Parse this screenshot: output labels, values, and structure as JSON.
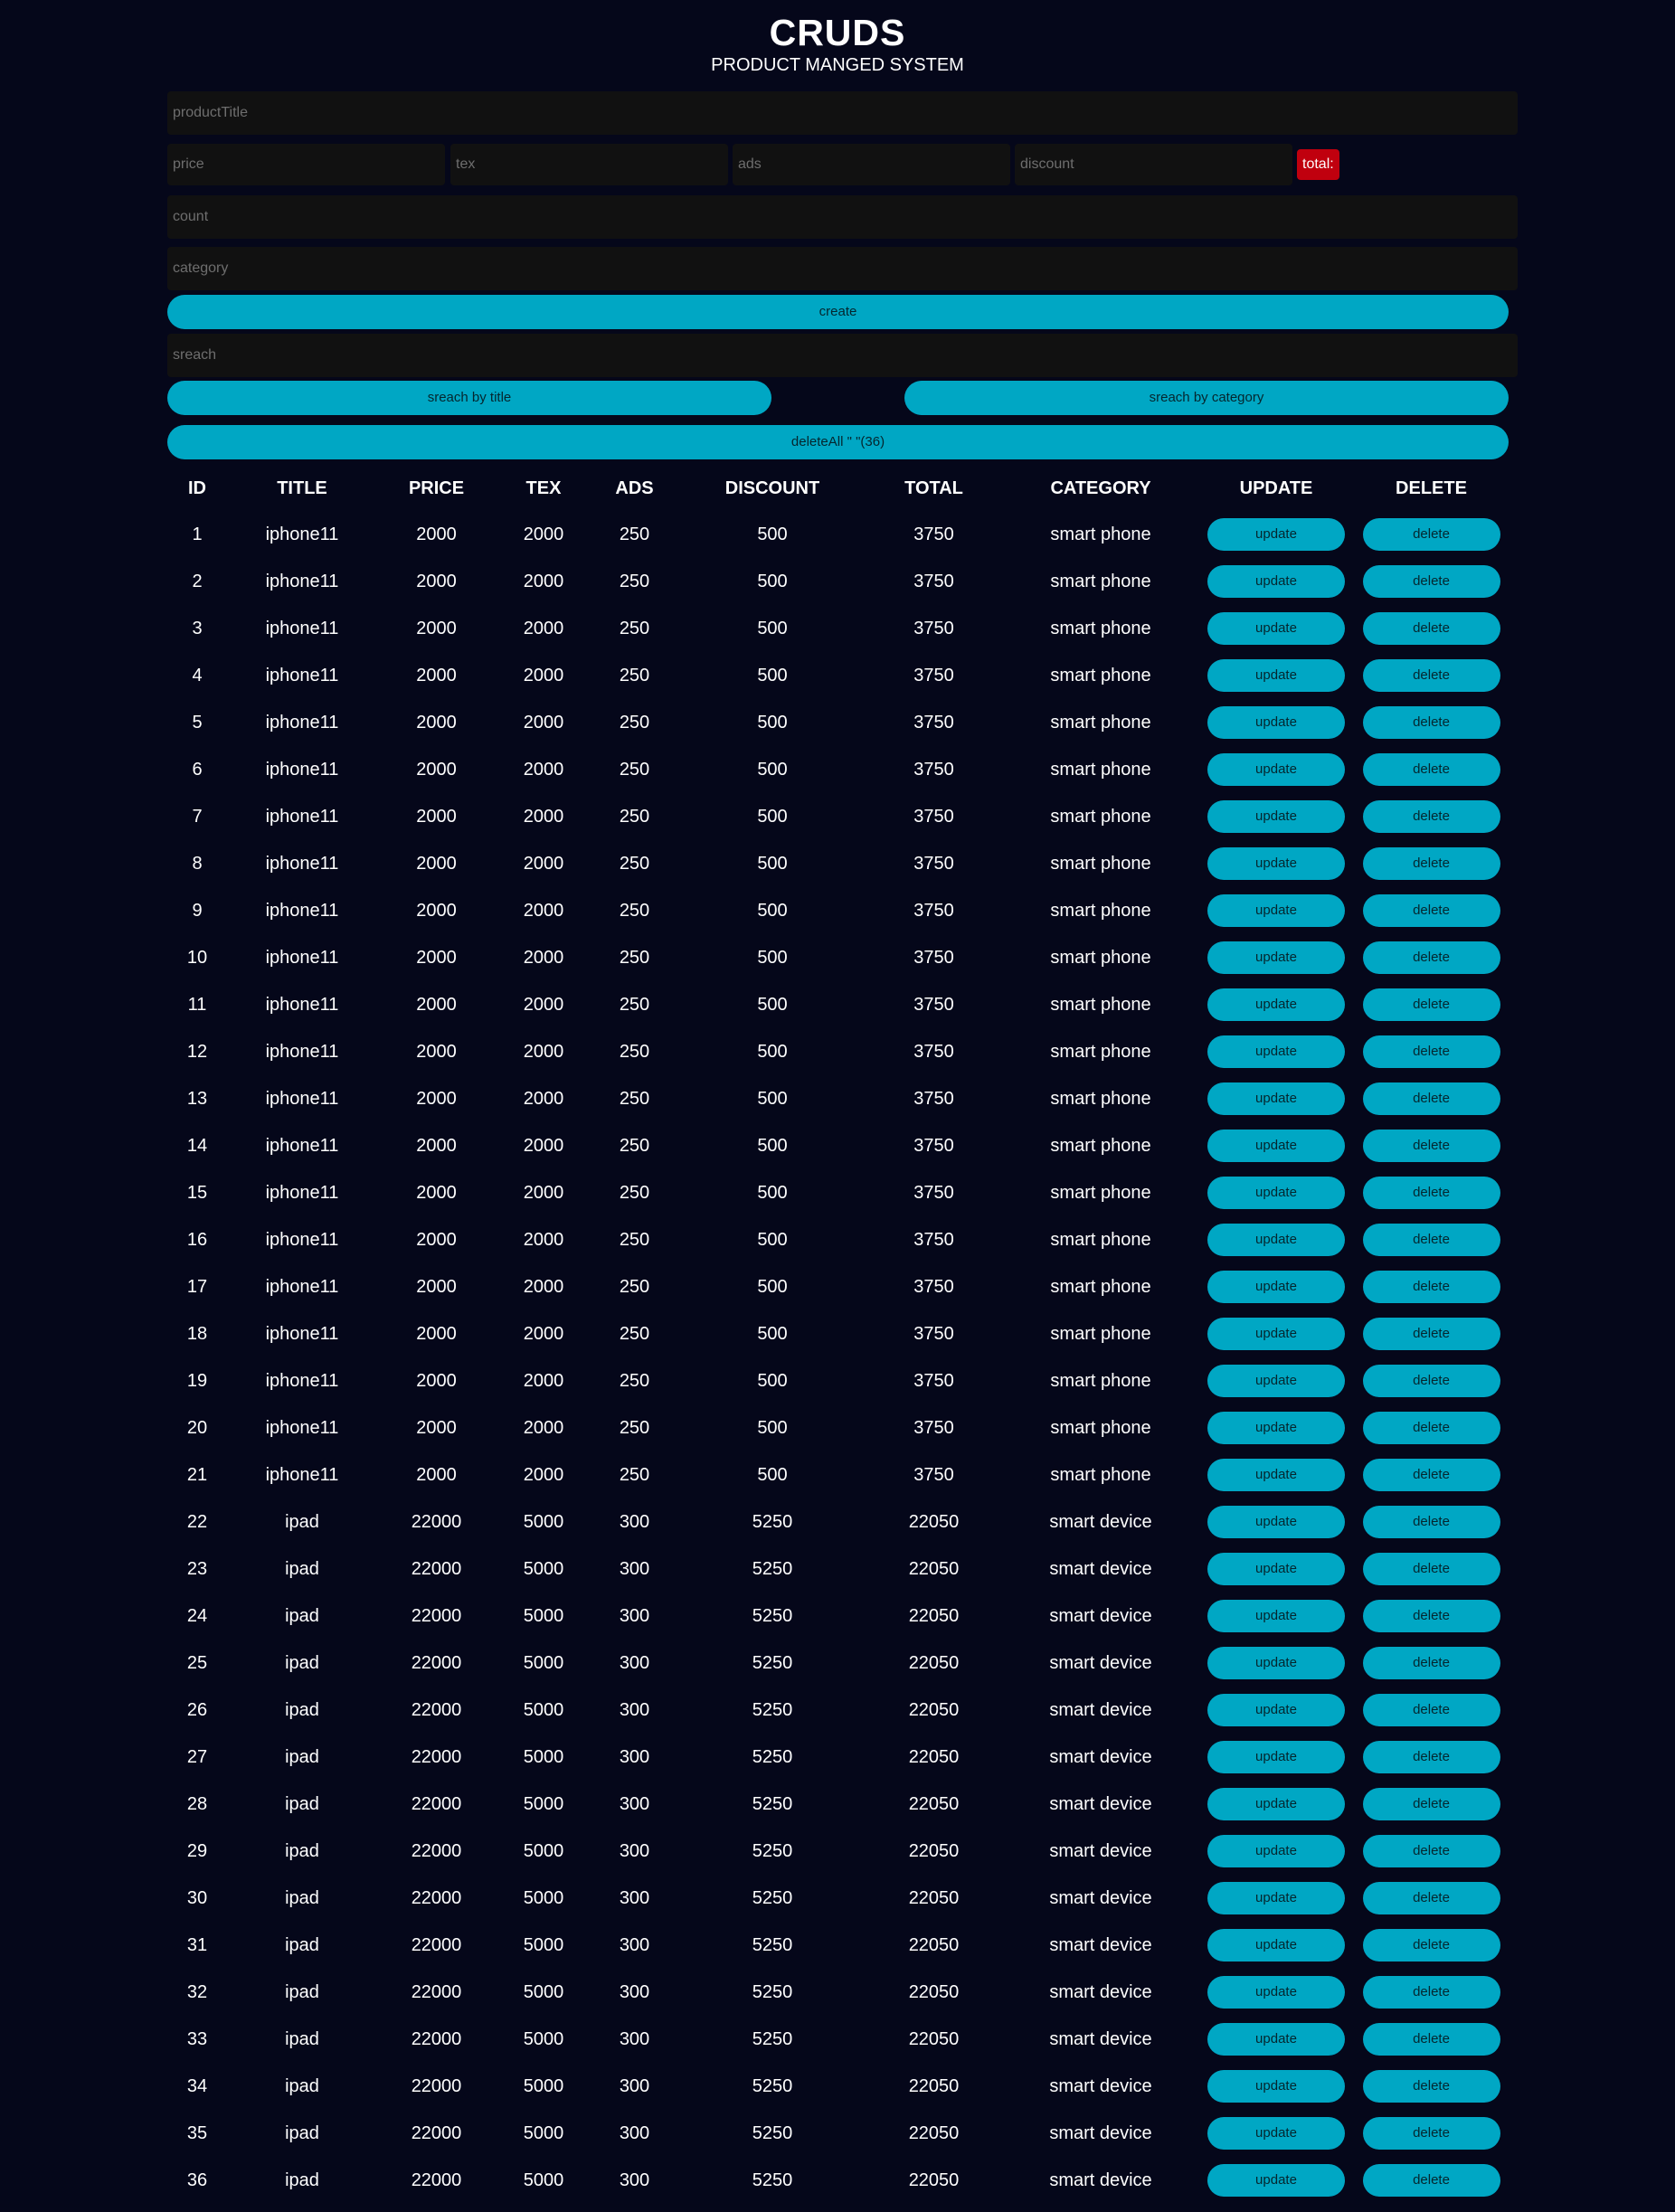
{
  "header": {
    "title": "CRUDS",
    "subtitle": "PRODUCT MANGED SYSTEM"
  },
  "form": {
    "title_placeholder": "productTitle",
    "price_placeholder": "price",
    "tax_placeholder": "tex",
    "ads_placeholder": "ads",
    "discount_placeholder": "discount",
    "total_label": "total:",
    "count_placeholder": "count",
    "category_placeholder": "category",
    "create_label": "create"
  },
  "search": {
    "placeholder": "sreach",
    "by_title_label": "sreach by title",
    "by_category_label": "sreach by category",
    "delete_all_label": "deleteAll \" \"(36)"
  },
  "table": {
    "columns": [
      "ID",
      "TITLE",
      "PRICE",
      "TEX",
      "ADS",
      "DISCOUNT",
      "TOTAL",
      "CATEGORY",
      "UPDATE",
      "DELETE"
    ],
    "update_label": "update",
    "delete_label": "delete",
    "rows": [
      {
        "id": "1",
        "title": "iphone11",
        "price": "2000",
        "tax": "2000",
        "ads": "250",
        "discount": "500",
        "total": "3750",
        "category": "smart phone"
      },
      {
        "id": "2",
        "title": "iphone11",
        "price": "2000",
        "tax": "2000",
        "ads": "250",
        "discount": "500",
        "total": "3750",
        "category": "smart phone"
      },
      {
        "id": "3",
        "title": "iphone11",
        "price": "2000",
        "tax": "2000",
        "ads": "250",
        "discount": "500",
        "total": "3750",
        "category": "smart phone"
      },
      {
        "id": "4",
        "title": "iphone11",
        "price": "2000",
        "tax": "2000",
        "ads": "250",
        "discount": "500",
        "total": "3750",
        "category": "smart phone"
      },
      {
        "id": "5",
        "title": "iphone11",
        "price": "2000",
        "tax": "2000",
        "ads": "250",
        "discount": "500",
        "total": "3750",
        "category": "smart phone"
      },
      {
        "id": "6",
        "title": "iphone11",
        "price": "2000",
        "tax": "2000",
        "ads": "250",
        "discount": "500",
        "total": "3750",
        "category": "smart phone"
      },
      {
        "id": "7",
        "title": "iphone11",
        "price": "2000",
        "tax": "2000",
        "ads": "250",
        "discount": "500",
        "total": "3750",
        "category": "smart phone"
      },
      {
        "id": "8",
        "title": "iphone11",
        "price": "2000",
        "tax": "2000",
        "ads": "250",
        "discount": "500",
        "total": "3750",
        "category": "smart phone"
      },
      {
        "id": "9",
        "title": "iphone11",
        "price": "2000",
        "tax": "2000",
        "ads": "250",
        "discount": "500",
        "total": "3750",
        "category": "smart phone"
      },
      {
        "id": "10",
        "title": "iphone11",
        "price": "2000",
        "tax": "2000",
        "ads": "250",
        "discount": "500",
        "total": "3750",
        "category": "smart phone"
      },
      {
        "id": "11",
        "title": "iphone11",
        "price": "2000",
        "tax": "2000",
        "ads": "250",
        "discount": "500",
        "total": "3750",
        "category": "smart phone"
      },
      {
        "id": "12",
        "title": "iphone11",
        "price": "2000",
        "tax": "2000",
        "ads": "250",
        "discount": "500",
        "total": "3750",
        "category": "smart phone"
      },
      {
        "id": "13",
        "title": "iphone11",
        "price": "2000",
        "tax": "2000",
        "ads": "250",
        "discount": "500",
        "total": "3750",
        "category": "smart phone"
      },
      {
        "id": "14",
        "title": "iphone11",
        "price": "2000",
        "tax": "2000",
        "ads": "250",
        "discount": "500",
        "total": "3750",
        "category": "smart phone"
      },
      {
        "id": "15",
        "title": "iphone11",
        "price": "2000",
        "tax": "2000",
        "ads": "250",
        "discount": "500",
        "total": "3750",
        "category": "smart phone"
      },
      {
        "id": "16",
        "title": "iphone11",
        "price": "2000",
        "tax": "2000",
        "ads": "250",
        "discount": "500",
        "total": "3750",
        "category": "smart phone"
      },
      {
        "id": "17",
        "title": "iphone11",
        "price": "2000",
        "tax": "2000",
        "ads": "250",
        "discount": "500",
        "total": "3750",
        "category": "smart phone"
      },
      {
        "id": "18",
        "title": "iphone11",
        "price": "2000",
        "tax": "2000",
        "ads": "250",
        "discount": "500",
        "total": "3750",
        "category": "smart phone"
      },
      {
        "id": "19",
        "title": "iphone11",
        "price": "2000",
        "tax": "2000",
        "ads": "250",
        "discount": "500",
        "total": "3750",
        "category": "smart phone"
      },
      {
        "id": "20",
        "title": "iphone11",
        "price": "2000",
        "tax": "2000",
        "ads": "250",
        "discount": "500",
        "total": "3750",
        "category": "smart phone"
      },
      {
        "id": "21",
        "title": "iphone11",
        "price": "2000",
        "tax": "2000",
        "ads": "250",
        "discount": "500",
        "total": "3750",
        "category": "smart phone"
      },
      {
        "id": "22",
        "title": "ipad",
        "price": "22000",
        "tax": "5000",
        "ads": "300",
        "discount": "5250",
        "total": "22050",
        "category": "smart device"
      },
      {
        "id": "23",
        "title": "ipad",
        "price": "22000",
        "tax": "5000",
        "ads": "300",
        "discount": "5250",
        "total": "22050",
        "category": "smart device"
      },
      {
        "id": "24",
        "title": "ipad",
        "price": "22000",
        "tax": "5000",
        "ads": "300",
        "discount": "5250",
        "total": "22050",
        "category": "smart device"
      },
      {
        "id": "25",
        "title": "ipad",
        "price": "22000",
        "tax": "5000",
        "ads": "300",
        "discount": "5250",
        "total": "22050",
        "category": "smart device"
      },
      {
        "id": "26",
        "title": "ipad",
        "price": "22000",
        "tax": "5000",
        "ads": "300",
        "discount": "5250",
        "total": "22050",
        "category": "smart device"
      },
      {
        "id": "27",
        "title": "ipad",
        "price": "22000",
        "tax": "5000",
        "ads": "300",
        "discount": "5250",
        "total": "22050",
        "category": "smart device"
      },
      {
        "id": "28",
        "title": "ipad",
        "price": "22000",
        "tax": "5000",
        "ads": "300",
        "discount": "5250",
        "total": "22050",
        "category": "smart device"
      },
      {
        "id": "29",
        "title": "ipad",
        "price": "22000",
        "tax": "5000",
        "ads": "300",
        "discount": "5250",
        "total": "22050",
        "category": "smart device"
      },
      {
        "id": "30",
        "title": "ipad",
        "price": "22000",
        "tax": "5000",
        "ads": "300",
        "discount": "5250",
        "total": "22050",
        "category": "smart device"
      },
      {
        "id": "31",
        "title": "ipad",
        "price": "22000",
        "tax": "5000",
        "ads": "300",
        "discount": "5250",
        "total": "22050",
        "category": "smart device"
      },
      {
        "id": "32",
        "title": "ipad",
        "price": "22000",
        "tax": "5000",
        "ads": "300",
        "discount": "5250",
        "total": "22050",
        "category": "smart device"
      },
      {
        "id": "33",
        "title": "ipad",
        "price": "22000",
        "tax": "5000",
        "ads": "300",
        "discount": "5250",
        "total": "22050",
        "category": "smart device"
      },
      {
        "id": "34",
        "title": "ipad",
        "price": "22000",
        "tax": "5000",
        "ads": "300",
        "discount": "5250",
        "total": "22050",
        "category": "smart device"
      },
      {
        "id": "35",
        "title": "ipad",
        "price": "22000",
        "tax": "5000",
        "ads": "300",
        "discount": "5250",
        "total": "22050",
        "category": "smart device"
      },
      {
        "id": "36",
        "title": "ipad",
        "price": "22000",
        "tax": "5000",
        "ads": "300",
        "discount": "5250",
        "total": "22050",
        "category": "smart device"
      }
    ]
  },
  "colors": {
    "background": "#05071a",
    "input": "#111111",
    "accent": "#00a7c4",
    "total_badge": "#c0000e"
  }
}
